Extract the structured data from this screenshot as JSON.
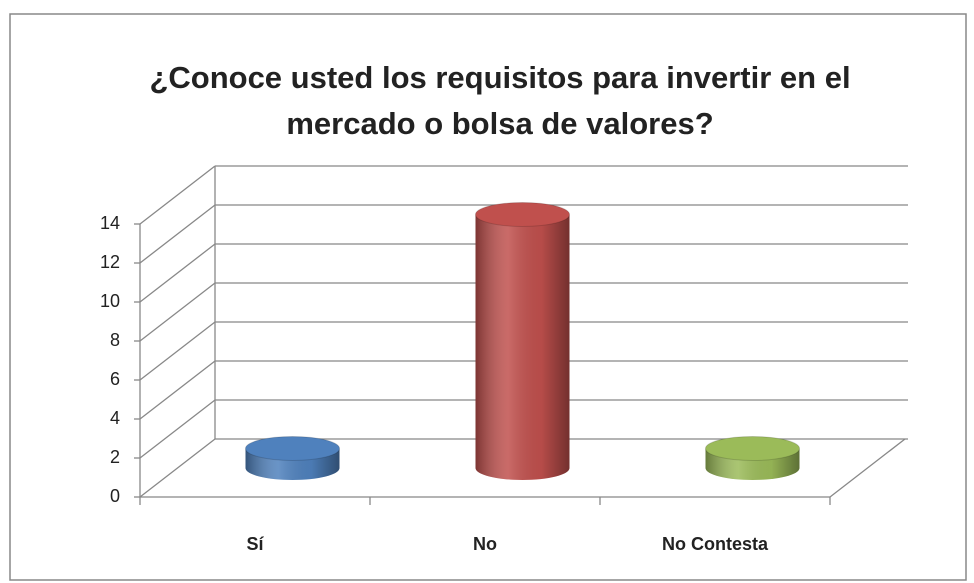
{
  "chart_data": {
    "type": "bar3d",
    "title": "¿Conoce usted los requisitos para invertir en el mercado o bolsa de valores?",
    "categories": [
      "Sí",
      "No",
      "No Contesta"
    ],
    "values": [
      1,
      13,
      1
    ],
    "colors": [
      "#4f81bd",
      "#c0504d",
      "#9bbb59"
    ],
    "ylim": [
      0,
      14
    ],
    "yticks": [
      0,
      2,
      4,
      6,
      8,
      10,
      12,
      14
    ],
    "grid": true
  }
}
